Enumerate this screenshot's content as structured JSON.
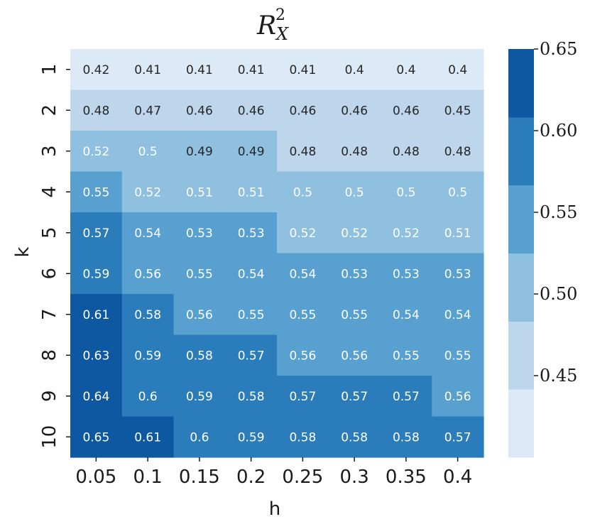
{
  "chart_data": {
    "type": "heatmap",
    "title_main": "R",
    "title_sup": "2",
    "title_sub": "X",
    "xlabel": "h",
    "ylabel": "k",
    "x_categories": [
      "0.05",
      "0.1",
      "0.15",
      "0.2",
      "0.25",
      "0.3",
      "0.35",
      "0.4"
    ],
    "y_categories": [
      "1",
      "2",
      "3",
      "4",
      "5",
      "6",
      "7",
      "8",
      "9",
      "10"
    ],
    "values": [
      [
        0.42,
        0.41,
        0.41,
        0.41,
        0.41,
        0.4,
        0.4,
        0.4
      ],
      [
        0.48,
        0.47,
        0.46,
        0.46,
        0.46,
        0.46,
        0.46,
        0.45
      ],
      [
        0.52,
        0.5,
        0.49,
        0.49,
        0.48,
        0.48,
        0.48,
        0.48
      ],
      [
        0.55,
        0.52,
        0.51,
        0.51,
        0.5,
        0.5,
        0.5,
        0.5
      ],
      [
        0.57,
        0.54,
        0.53,
        0.53,
        0.52,
        0.52,
        0.52,
        0.51
      ],
      [
        0.59,
        0.56,
        0.55,
        0.54,
        0.54,
        0.53,
        0.53,
        0.53
      ],
      [
        0.61,
        0.58,
        0.56,
        0.55,
        0.55,
        0.55,
        0.54,
        0.54
      ],
      [
        0.63,
        0.59,
        0.58,
        0.57,
        0.56,
        0.56,
        0.55,
        0.55
      ],
      [
        0.64,
        0.6,
        0.59,
        0.58,
        0.57,
        0.57,
        0.57,
        0.56
      ],
      [
        0.65,
        0.61,
        0.6,
        0.59,
        0.58,
        0.58,
        0.58,
        0.57
      ]
    ],
    "colorbar": {
      "range": [
        0.4,
        0.65
      ],
      "ticks": [
        "0.45",
        "0.50",
        "0.55",
        "0.60",
        "0.65"
      ],
      "bins": [
        {
          "min": 0.4,
          "max": 0.4417,
          "color": "#dce9f6"
        },
        {
          "min": 0.4417,
          "max": 0.4833,
          "color": "#bed6eb"
        },
        {
          "min": 0.4833,
          "max": 0.525,
          "color": "#8fc0df"
        },
        {
          "min": 0.525,
          "max": 0.5667,
          "color": "#57a0d0"
        },
        {
          "min": 0.5667,
          "max": 0.6083,
          "color": "#2b7cbb"
        },
        {
          "min": 0.6083,
          "max": 0.6501,
          "color": "#0d58a0"
        }
      ]
    }
  }
}
